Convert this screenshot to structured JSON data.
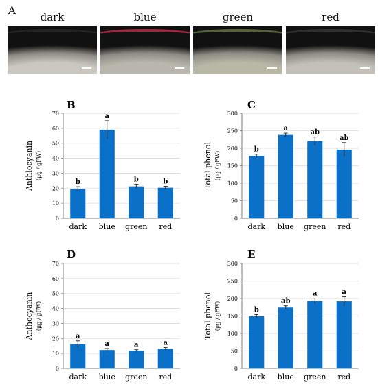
{
  "panels": {
    "A": "A",
    "B": "B",
    "C": "C",
    "D": "D",
    "E": "E"
  },
  "photos": [
    {
      "label": "dark",
      "tint": "#c9c7c0",
      "rim": "#2a2a2a"
    },
    {
      "label": "blue",
      "tint": "#b9b6ad",
      "rim": "#c8324f"
    },
    {
      "label": "green",
      "tint": "#b7b9a6",
      "rim": "#6c7d4b"
    },
    {
      "label": "red",
      "tint": "#c2c0b8",
      "rim": "#3a3a3a"
    }
  ],
  "colors": {
    "bar": "#0b70c8",
    "grid": "#d9d9d9",
    "axis": "#7f7f7f"
  },
  "chart_data": [
    {
      "panel": "B",
      "type": "bar",
      "categories": [
        "dark",
        "blue",
        "green",
        "red"
      ],
      "values": [
        19.5,
        59,
        21.2,
        20.3
      ],
      "errors": [
        1.5,
        6,
        1.5,
        1.0
      ],
      "letters": [
        "b",
        "a",
        "b",
        "b"
      ],
      "ylabel": "Anthlocyanin",
      "ylabel_unit": "(μg / gFW)",
      "ylim": [
        0,
        70
      ],
      "yticks": [
        0,
        10,
        20,
        30,
        40,
        50,
        60,
        70
      ],
      "grid": true
    },
    {
      "panel": "C",
      "type": "bar",
      "categories": [
        "dark",
        "blue",
        "green",
        "red"
      ],
      "values": [
        178,
        238,
        220,
        196
      ],
      "errors": [
        5,
        5,
        12,
        20
      ],
      "letters": [
        "b",
        "a",
        "ab",
        "ab"
      ],
      "ylabel": "Total phenol",
      "ylabel_unit": "(μg / gFW)",
      "ylim": [
        0,
        300
      ],
      "yticks": [
        0,
        50,
        100,
        150,
        200,
        250,
        300
      ],
      "grid": true
    },
    {
      "panel": "D",
      "type": "bar",
      "categories": [
        "dark",
        "blue",
        "green",
        "red"
      ],
      "values": [
        16.2,
        12.3,
        11.8,
        13.1
      ],
      "errors": [
        2.2,
        1.0,
        0.7,
        0.8
      ],
      "letters": [
        "a",
        "a",
        "a",
        "a"
      ],
      "ylabel": "Anthocyanin",
      "ylabel_unit": "(μg / gFW)",
      "ylim": [
        0,
        70
      ],
      "yticks": [
        0,
        10,
        20,
        30,
        40,
        50,
        60,
        70
      ],
      "grid": true
    },
    {
      "panel": "E",
      "type": "bar",
      "categories": [
        "dark",
        "blue",
        "green",
        "red"
      ],
      "values": [
        149,
        174,
        193,
        192
      ],
      "errors": [
        5,
        5,
        8,
        13
      ],
      "letters": [
        "b",
        "ab",
        "a",
        "a"
      ],
      "ylabel": "Total phenol",
      "ylabel_unit": "(μg / gFW)",
      "ylim": [
        0,
        300
      ],
      "yticks": [
        0,
        50,
        100,
        150,
        200,
        250,
        300
      ],
      "grid": true
    }
  ]
}
